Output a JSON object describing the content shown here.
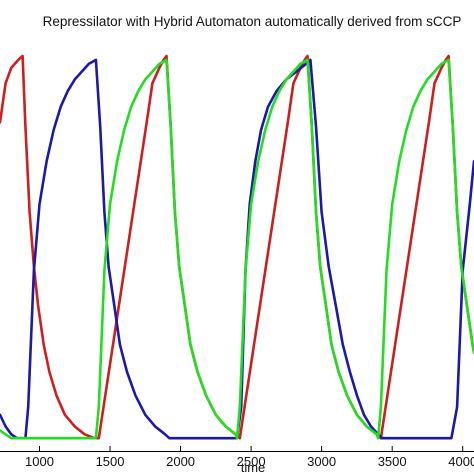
{
  "chart_data": {
    "type": "line",
    "title": "Repressilator with Hybrid Automaton automatically derived from sCCP",
    "xlabel": "time",
    "ylabel": "",
    "xlim": [
      720,
      4080
    ],
    "ylim": [
      0,
      1
    ],
    "x_ticks": [
      1000,
      1500,
      2000,
      2500,
      3000,
      3500,
      4000
    ],
    "x_tick_labels": [
      "1000",
      "1500",
      "2000",
      "2500",
      "3000",
      "3500",
      "4000"
    ],
    "grid": false,
    "legend": "none",
    "period": 1000,
    "series": [
      {
        "color": "#cc1f1f",
        "x": [
          720,
          760,
          800,
          850,
          880,
          900,
          930,
          960,
          990,
          1030,
          1070,
          1120,
          1180,
          1250,
          1320,
          1390,
          1420,
          1760,
          1800,
          1850,
          1880,
          1900,
          1930,
          1960,
          1990,
          2030,
          2070,
          2120,
          2180,
          2250,
          2320,
          2390,
          2420,
          2760,
          2800,
          2850,
          2880,
          2900,
          2930,
          2960,
          2990,
          3030,
          3070,
          3120,
          3180,
          3250,
          3320,
          3390,
          3420,
          3760,
          3800,
          3850,
          3880,
          3900,
          3930,
          3960,
          3990,
          4030,
          4070,
          4080
        ],
        "values": [
          0.83,
          0.93,
          0.97,
          0.99,
          1.0,
          0.82,
          0.6,
          0.46,
          0.36,
          0.26,
          0.19,
          0.13,
          0.08,
          0.05,
          0.03,
          0.02,
          0.02,
          0.83,
          0.93,
          0.97,
          0.99,
          1.0,
          0.82,
          0.6,
          0.46,
          0.36,
          0.26,
          0.19,
          0.13,
          0.08,
          0.05,
          0.03,
          0.02,
          0.83,
          0.93,
          0.97,
          0.99,
          1.0,
          0.82,
          0.6,
          0.46,
          0.36,
          0.26,
          0.19,
          0.13,
          0.08,
          0.05,
          0.03,
          0.02,
          0.83,
          0.93,
          0.97,
          0.99,
          1.0,
          0.82,
          0.6,
          0.46,
          0.36,
          0.26,
          0.24
        ]
      },
      {
        "color": "#1a1aa6",
        "x": [
          720,
          760,
          800,
          840,
          880,
          900,
          920,
          960,
          1000,
          1050,
          1100,
          1150,
          1200,
          1250,
          1300,
          1350,
          1400,
          1430,
          1460,
          1490,
          1530,
          1570,
          1620,
          1680,
          1750,
          1820,
          1890,
          1920,
          1960,
          2000,
          2050,
          2100,
          2150,
          2200,
          2250,
          2300,
          2350,
          2400,
          2430,
          2460,
          2490,
          2530,
          2570,
          2620,
          2680,
          2750,
          2820,
          2890,
          2920,
          2960,
          3000,
          3050,
          3100,
          3150,
          3200,
          3250,
          3300,
          3350,
          3400,
          3430,
          3460,
          3490,
          3530,
          3570,
          3620,
          3680,
          3750,
          3820,
          3890,
          3920,
          3960,
          4000,
          4050,
          4080
        ],
        "values": [
          0.08,
          0.05,
          0.03,
          0.02,
          0.02,
          0.02,
          0.1,
          0.45,
          0.62,
          0.73,
          0.81,
          0.87,
          0.91,
          0.94,
          0.96,
          0.98,
          0.99,
          0.82,
          0.6,
          0.46,
          0.36,
          0.26,
          0.19,
          0.13,
          0.08,
          0.05,
          0.03,
          0.02,
          0.02,
          0.02,
          0.02,
          0.02,
          0.02,
          0.02,
          0.02,
          0.02,
          0.02,
          0.02,
          0.1,
          0.45,
          0.62,
          0.73,
          0.81,
          0.87,
          0.91,
          0.94,
          0.96,
          0.98,
          0.99,
          0.82,
          0.6,
          0.46,
          0.36,
          0.26,
          0.19,
          0.13,
          0.08,
          0.05,
          0.03,
          0.02,
          0.02,
          0.02,
          0.02,
          0.02,
          0.02,
          0.02,
          0.02,
          0.02,
          0.02,
          0.02,
          0.1,
          0.45,
          0.62,
          0.73
        ]
      },
      {
        "color": "#22dd22",
        "x": [
          720,
          760,
          800,
          850,
          900,
          960,
          1030,
          1100,
          1180,
          1250,
          1320,
          1390,
          1400,
          1420,
          1460,
          1500,
          1550,
          1600,
          1650,
          1700,
          1750,
          1800,
          1850,
          1900,
          1930,
          1960,
          1990,
          2030,
          2070,
          2120,
          2180,
          2250,
          2320,
          2390,
          2400,
          2420,
          2460,
          2500,
          2550,
          2600,
          2650,
          2700,
          2750,
          2800,
          2850,
          2900,
          2930,
          2960,
          2990,
          3030,
          3070,
          3120,
          3180,
          3250,
          3320,
          3390,
          3400,
          3420,
          3460,
          3500,
          3550,
          3600,
          3650,
          3700,
          3750,
          3800,
          3850,
          3900,
          3930,
          3960,
          3990,
          4030,
          4070,
          4080
        ],
        "values": [
          0.04,
          0.03,
          0.02,
          0.02,
          0.02,
          0.02,
          0.02,
          0.02,
          0.02,
          0.02,
          0.02,
          0.02,
          0.02,
          0.1,
          0.45,
          0.62,
          0.73,
          0.81,
          0.87,
          0.91,
          0.94,
          0.96,
          0.98,
          0.99,
          0.82,
          0.6,
          0.46,
          0.36,
          0.26,
          0.19,
          0.13,
          0.08,
          0.05,
          0.03,
          0.02,
          0.1,
          0.45,
          0.62,
          0.73,
          0.81,
          0.87,
          0.91,
          0.94,
          0.96,
          0.98,
          0.99,
          0.82,
          0.6,
          0.46,
          0.36,
          0.26,
          0.19,
          0.13,
          0.08,
          0.05,
          0.03,
          0.02,
          0.1,
          0.45,
          0.62,
          0.73,
          0.81,
          0.87,
          0.91,
          0.94,
          0.96,
          0.98,
          0.99,
          0.82,
          0.6,
          0.46,
          0.36,
          0.26,
          0.24
        ]
      }
    ]
  }
}
